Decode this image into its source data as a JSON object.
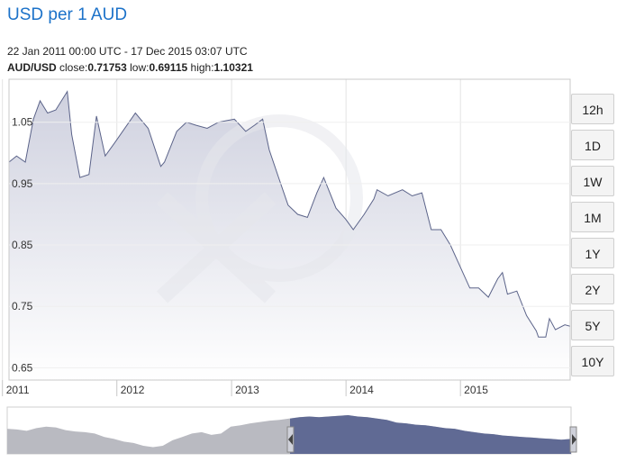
{
  "title": "USD per 1 AUD",
  "date_range": "22 Jan 2011 00:00 UTC - 17 Dec 2015 03:07 UTC",
  "summary": {
    "pair": "AUD/USD",
    "close_label": "close:",
    "close": "0.71753",
    "low_label": "low:",
    "low": "0.69115",
    "high_label": "high:",
    "high": "1.10321"
  },
  "range_buttons": [
    "12h",
    "1D",
    "1W",
    "1M",
    "1Y",
    "2Y",
    "5Y",
    "10Y"
  ],
  "colors": {
    "title": "#1c72c9",
    "line": "#5b6389",
    "area_top": "#cfd1df",
    "area_bottom": "#ffffff",
    "navigator_selected": "#606a94",
    "navigator_unselected": "#b9bac1",
    "watermark": "#ececef"
  },
  "chart_data": {
    "type": "area",
    "ylim": [
      0.63,
      1.12
    ],
    "yticks": [
      "1.05",
      "0.95",
      "0.85",
      "0.75",
      "0.65"
    ],
    "yticks_values": [
      1.05,
      0.95,
      0.85,
      0.75,
      0.65
    ],
    "xticks": [
      "2011",
      "2012",
      "2013",
      "2014",
      "2015"
    ],
    "xlim": [
      "2011-01-22",
      "2015-12-17"
    ],
    "grid": true,
    "legend": "none",
    "series": [
      {
        "x": [
          "2011-01-22",
          "2011-02-15",
          "2011-03-15",
          "2011-04-10",
          "2011-05-01",
          "2011-05-25",
          "2011-06-20",
          "2011-07-27",
          "2011-08-10",
          "2011-09-05",
          "2011-10-04",
          "2011-10-28",
          "2011-11-25",
          "2011-12-30",
          "2012-02-29",
          "2012-04-10",
          "2012-05-20",
          "2012-06-01",
          "2012-07-10",
          "2012-08-10",
          "2012-09-10",
          "2012-10-15",
          "2012-11-20",
          "2013-01-10",
          "2013-02-15",
          "2013-03-15",
          "2013-04-10",
          "2013-05-01",
          "2013-05-31",
          "2013-06-30",
          "2013-07-31",
          "2013-08-31",
          "2013-09-30",
          "2013-10-22",
          "2013-11-30",
          "2013-12-31",
          "2014-01-24",
          "2014-02-28",
          "2014-03-31",
          "2014-04-10",
          "2014-05-15",
          "2014-06-30",
          "2014-07-31",
          "2014-08-31",
          "2014-09-30",
          "2014-10-31",
          "2014-11-30",
          "2014-12-31",
          "2015-01-31",
          "2015-02-28",
          "2015-03-31",
          "2015-04-30",
          "2015-05-15",
          "2015-05-31",
          "2015-06-30",
          "2015-07-31",
          "2015-08-31",
          "2015-09-07",
          "2015-09-30",
          "2015-10-12",
          "2015-10-31",
          "2015-11-30",
          "2015-12-17"
        ],
        "values": [
          0.985,
          0.995,
          0.985,
          1.055,
          1.085,
          1.065,
          1.07,
          1.1,
          1.03,
          0.96,
          0.965,
          1.06,
          0.995,
          1.02,
          1.065,
          1.04,
          0.978,
          0.985,
          1.035,
          1.05,
          1.045,
          1.04,
          1.05,
          1.055,
          1.035,
          1.045,
          1.055,
          1.005,
          0.96,
          0.915,
          0.9,
          0.895,
          0.935,
          0.96,
          0.91,
          0.892,
          0.875,
          0.9,
          0.925,
          0.94,
          0.93,
          0.94,
          0.93,
          0.935,
          0.875,
          0.875,
          0.85,
          0.815,
          0.78,
          0.78,
          0.765,
          0.795,
          0.805,
          0.77,
          0.775,
          0.735,
          0.71,
          0.7,
          0.7,
          0.73,
          0.712,
          0.72,
          0.71753
        ]
      }
    ]
  }
}
